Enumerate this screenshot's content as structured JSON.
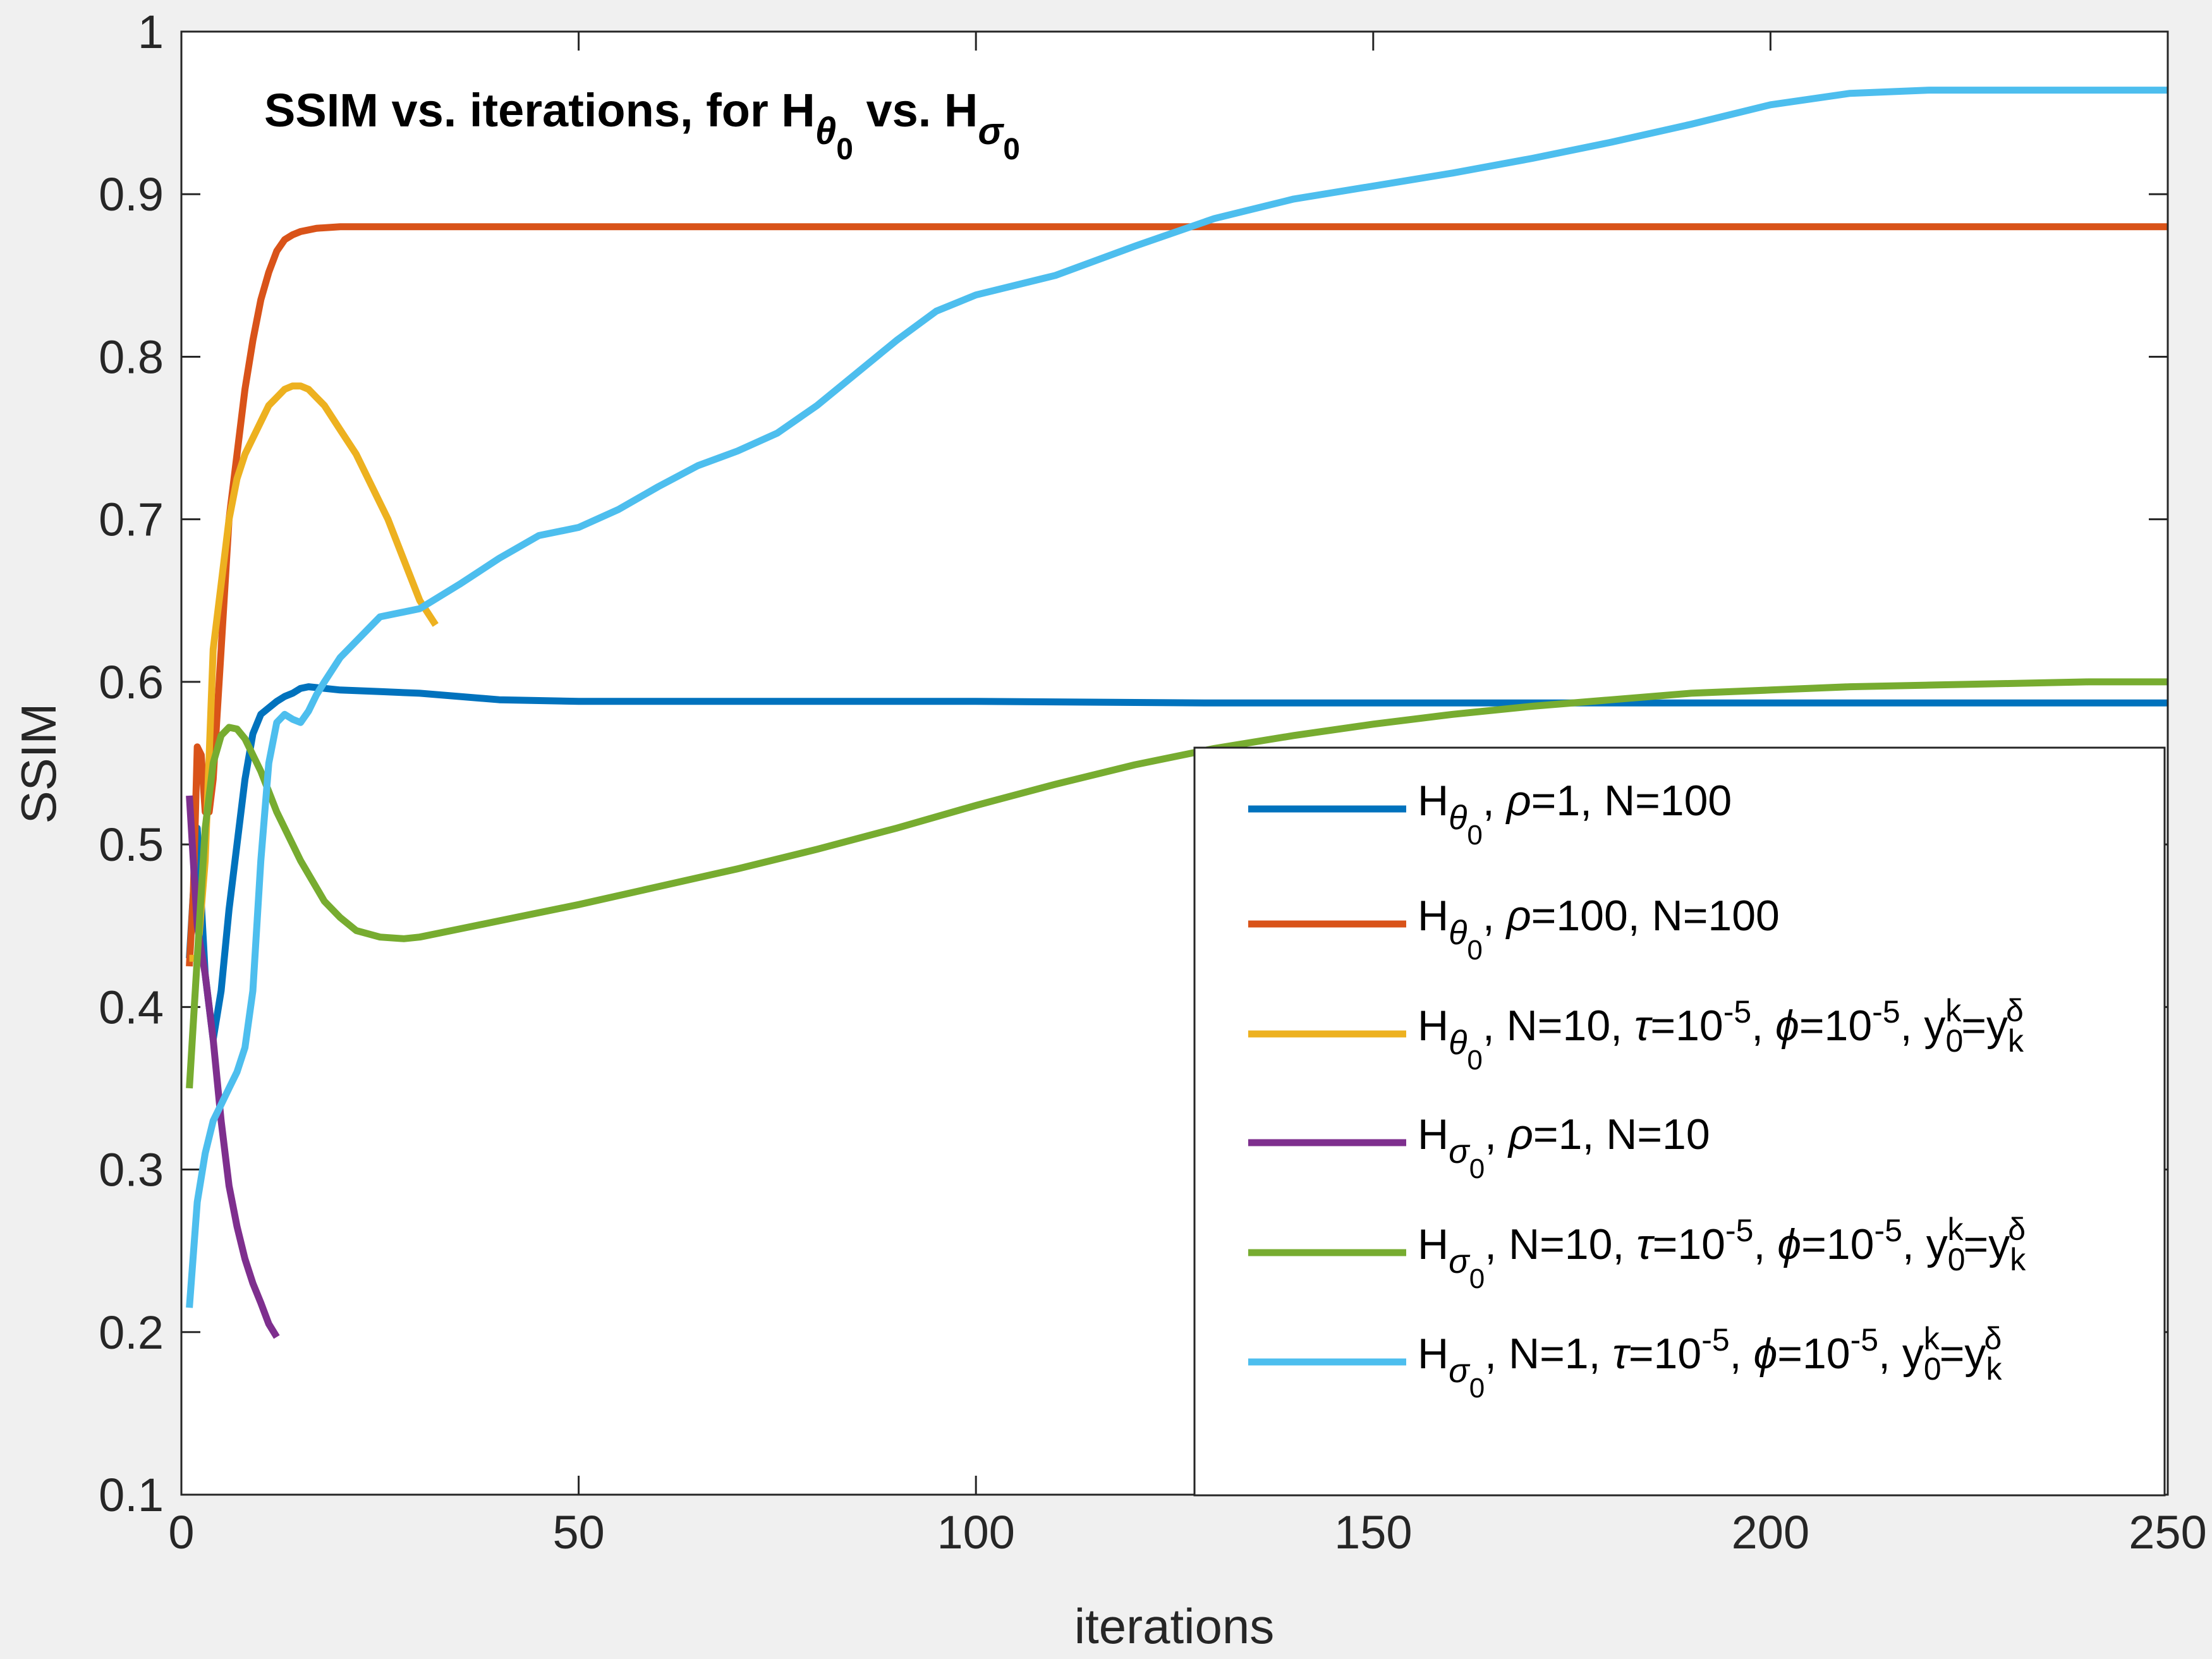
{
  "chart_data": {
    "type": "line",
    "title": {
      "prefix": "SSIM vs. iterations, for H",
      "sub1": "θ",
      "sub1_sub": "0",
      "middle": " vs. H",
      "sub2": "σ",
      "sub2_sub": "0"
    },
    "xlabel": "iterations",
    "ylabel": "SSIM",
    "xlim": [
      0,
      250
    ],
    "ylim": [
      0.1,
      1.0
    ],
    "xticks": [
      0,
      50,
      100,
      150,
      200,
      250
    ],
    "xtick_labels": [
      "0",
      "50",
      "100",
      "150",
      "200",
      "250"
    ],
    "yticks": [
      0.1,
      0.2,
      0.3,
      0.4,
      0.5,
      0.6,
      0.7,
      0.8,
      0.9,
      1.0
    ],
    "ytick_labels": [
      "0.1",
      "0.2",
      "0.3",
      "0.4",
      "0.5",
      "0.6",
      "0.7",
      "0.8",
      "0.9",
      "1"
    ],
    "grid": false,
    "legend_position": "bottom-right",
    "series": [
      {
        "name": "H_theta0, rho=1, N=100",
        "color": "#0072bd",
        "legend": {
          "main": "H",
          "sub": "θ",
          "subsub": "0",
          "parts": [
            {
              "t": ", "
            },
            {
              "t": "ρ",
              "i": true
            },
            {
              "t": "=1, N=100"
            }
          ]
        },
        "x": [
          1,
          2,
          3,
          4,
          5,
          6,
          7,
          8,
          9,
          10,
          11,
          12,
          13,
          14,
          15,
          16,
          18,
          20,
          25,
          30,
          40,
          50,
          80,
          100,
          130,
          160,
          200,
          250
        ],
        "y": [
          0.43,
          0.51,
          0.42,
          0.38,
          0.41,
          0.46,
          0.5,
          0.54,
          0.568,
          0.58,
          0.584,
          0.588,
          0.591,
          0.593,
          0.596,
          0.597,
          0.596,
          0.595,
          0.594,
          0.593,
          0.589,
          0.588,
          0.588,
          0.588,
          0.587,
          0.587,
          0.587,
          0.587
        ]
      },
      {
        "name": "H_theta0, rho=100, N=100",
        "color": "#d95319",
        "legend": {
          "main": "H",
          "sub": "θ",
          "subsub": "0",
          "parts": [
            {
              "t": ", "
            },
            {
              "t": "ρ",
              "i": true
            },
            {
              "t": "=100, N=100"
            }
          ]
        },
        "x": [
          1,
          1.5,
          2,
          2.5,
          3,
          3.5,
          4,
          5,
          6,
          7,
          8,
          9,
          10,
          11,
          12,
          13,
          14,
          15,
          17,
          20,
          25,
          30,
          50,
          100,
          150,
          200,
          250
        ],
        "y": [
          0.425,
          0.47,
          0.56,
          0.555,
          0.52,
          0.52,
          0.54,
          0.62,
          0.7,
          0.74,
          0.78,
          0.81,
          0.835,
          0.852,
          0.865,
          0.872,
          0.875,
          0.877,
          0.879,
          0.88,
          0.88,
          0.88,
          0.88,
          0.88,
          0.88,
          0.88,
          0.88
        ]
      },
      {
        "name": "H_theta0, N=10, tau=10^-5, phi=10^-5, y0k=yk_delta",
        "color": "#edb120",
        "legend": {
          "main": "H",
          "sub": "θ",
          "subsub": "0",
          "parts": [
            {
              "t": ", N=10, "
            },
            {
              "t": "τ",
              "i": true
            },
            {
              "t": "=10"
            },
            {
              "t": "-5",
              "sup": true
            },
            {
              "t": ", "
            },
            {
              "t": "ϕ",
              "i": true
            },
            {
              "t": "=10"
            },
            {
              "t": "-5",
              "sup": true
            },
            {
              "t": ", y"
            },
            {
              "t": "0",
              "sub": true,
              "sup2": "k"
            },
            {
              "t": "=y"
            },
            {
              "t": "k",
              "sub": true,
              "sup2": "δ"
            }
          ]
        },
        "x": [
          1,
          2,
          3,
          4,
          5,
          6,
          7,
          8,
          9,
          10,
          11,
          12,
          13,
          14,
          15,
          16,
          17,
          18,
          20,
          22,
          24,
          26,
          28,
          30,
          32
        ],
        "y": [
          0.43,
          0.43,
          0.49,
          0.62,
          0.66,
          0.7,
          0.725,
          0.74,
          0.75,
          0.76,
          0.77,
          0.775,
          0.78,
          0.782,
          0.782,
          0.78,
          0.775,
          0.77,
          0.755,
          0.74,
          0.72,
          0.7,
          0.675,
          0.65,
          0.635
        ]
      },
      {
        "name": "H_sigma0, rho=1, N=10",
        "color": "#7e2f8e",
        "legend": {
          "main": "H",
          "sub": "σ",
          "subsub": "0",
          "parts": [
            {
              "t": ", "
            },
            {
              "t": "ρ",
              "i": true
            },
            {
              "t": "=1, N=10"
            }
          ]
        },
        "x": [
          1,
          2,
          3,
          4,
          5,
          6,
          7,
          8,
          9,
          10,
          11,
          12
        ],
        "y": [
          0.53,
          0.45,
          0.42,
          0.38,
          0.33,
          0.29,
          0.265,
          0.245,
          0.23,
          0.218,
          0.205,
          0.197
        ]
      },
      {
        "name": "H_sigma0, N=10, tau=10^-5, phi=10^-5, y0k=yk_delta",
        "color": "#77ac30",
        "legend": {
          "main": "H",
          "sub": "σ",
          "subsub": "0",
          "parts": [
            {
              "t": ", N=10, "
            },
            {
              "t": "τ",
              "i": true
            },
            {
              "t": "=10"
            },
            {
              "t": "-5",
              "sup": true
            },
            {
              "t": ", "
            },
            {
              "t": "ϕ",
              "i": true
            },
            {
              "t": "=10"
            },
            {
              "t": "-5",
              "sup": true
            },
            {
              "t": ", y"
            },
            {
              "t": "0",
              "sub": true,
              "sup2": "k"
            },
            {
              "t": "=y"
            },
            {
              "t": "k",
              "sub": true,
              "sup2": "δ"
            }
          ]
        },
        "x": [
          1,
          2,
          3,
          4,
          5,
          6,
          7,
          8,
          10,
          12,
          15,
          18,
          20,
          22,
          25,
          28,
          30,
          35,
          40,
          50,
          60,
          70,
          80,
          90,
          100,
          110,
          120,
          130,
          140,
          150,
          160,
          170,
          180,
          190,
          200,
          210,
          220,
          230,
          240,
          250
        ],
        "y": [
          0.35,
          0.43,
          0.51,
          0.55,
          0.567,
          0.572,
          0.571,
          0.565,
          0.545,
          0.52,
          0.49,
          0.465,
          0.455,
          0.447,
          0.443,
          0.442,
          0.443,
          0.448,
          0.453,
          0.463,
          0.474,
          0.485,
          0.497,
          0.51,
          0.524,
          0.537,
          0.549,
          0.559,
          0.567,
          0.574,
          0.58,
          0.585,
          0.589,
          0.593,
          0.595,
          0.597,
          0.598,
          0.599,
          0.6,
          0.6
        ]
      },
      {
        "name": "H_sigma0, N=1, tau=10^-5, phi=10^-5, y0k=yk_delta",
        "color": "#4dbeee",
        "legend": {
          "main": "H",
          "sub": "σ",
          "subsub": "0",
          "parts": [
            {
              "t": ", N=1, "
            },
            {
              "t": "τ",
              "i": true
            },
            {
              "t": "=10"
            },
            {
              "t": "-5",
              "sup": true
            },
            {
              "t": ", "
            },
            {
              "t": "ϕ",
              "i": true
            },
            {
              "t": "=10"
            },
            {
              "t": "-5",
              "sup": true
            },
            {
              "t": ", y"
            },
            {
              "t": "0",
              "sub": true,
              "sup2": "k"
            },
            {
              "t": "=y"
            },
            {
              "t": "k",
              "sub": true,
              "sup2": "δ"
            }
          ]
        },
        "x": [
          1,
          2,
          3,
          4,
          5,
          6,
          7,
          8,
          9,
          10,
          11,
          12,
          13,
          14,
          15,
          16,
          17,
          18,
          20,
          25,
          30,
          35,
          40,
          45,
          50,
          55,
          60,
          65,
          70,
          75,
          80,
          85,
          90,
          95,
          100,
          110,
          120,
          130,
          140,
          150,
          160,
          170,
          180,
          190,
          200,
          210,
          220,
          230,
          240,
          250
        ],
        "y": [
          0.215,
          0.28,
          0.31,
          0.33,
          0.34,
          0.35,
          0.36,
          0.375,
          0.41,
          0.49,
          0.55,
          0.575,
          0.58,
          0.577,
          0.575,
          0.582,
          0.592,
          0.6,
          0.615,
          0.64,
          0.645,
          0.66,
          0.676,
          0.69,
          0.695,
          0.706,
          0.72,
          0.733,
          0.742,
          0.753,
          0.77,
          0.79,
          0.81,
          0.828,
          0.838,
          0.85,
          0.868,
          0.885,
          0.897,
          0.905,
          0.913,
          0.922,
          0.932,
          0.943,
          0.955,
          0.962,
          0.964,
          0.964,
          0.964,
          0.964
        ]
      }
    ]
  }
}
